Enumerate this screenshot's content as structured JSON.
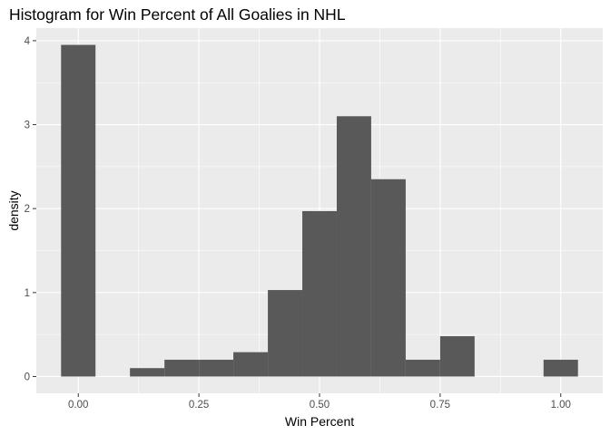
{
  "chart_data": {
    "type": "bar",
    "title": "Histogram for Win Percent of All Goalies in NHL",
    "xlabel": "Win Percent",
    "ylabel": "density",
    "bin_width": 0.0714,
    "bins": [
      {
        "x_start": -0.0357,
        "x_end": 0.0357,
        "density": 3.95
      },
      {
        "x_start": 0.0357,
        "x_end": 0.1071,
        "density": 0
      },
      {
        "x_start": 0.1071,
        "x_end": 0.1786,
        "density": 0.1
      },
      {
        "x_start": 0.1786,
        "x_end": 0.25,
        "density": 0.2
      },
      {
        "x_start": 0.25,
        "x_end": 0.3214,
        "density": 0.2
      },
      {
        "x_start": 0.3214,
        "x_end": 0.3929,
        "density": 0.29
      },
      {
        "x_start": 0.3929,
        "x_end": 0.4643,
        "density": 1.03
      },
      {
        "x_start": 0.4643,
        "x_end": 0.5357,
        "density": 1.97
      },
      {
        "x_start": 0.5357,
        "x_end": 0.6071,
        "density": 3.1
      },
      {
        "x_start": 0.6071,
        "x_end": 0.6786,
        "density": 2.35
      },
      {
        "x_start": 0.6786,
        "x_end": 0.75,
        "density": 0.2
      },
      {
        "x_start": 0.75,
        "x_end": 0.8214,
        "density": 0.48
      },
      {
        "x_start": 0.8214,
        "x_end": 0.8929,
        "density": 0
      },
      {
        "x_start": 0.8929,
        "x_end": 0.9643,
        "density": 0
      },
      {
        "x_start": 0.9643,
        "x_end": 1.0357,
        "density": 0.2
      }
    ],
    "xlim": [
      -0.087,
      1.087
    ],
    "ylim": [
      -0.2,
      4.15
    ],
    "x_ticks": [
      {
        "value": 0,
        "label": "0.00"
      },
      {
        "value": 0.25,
        "label": "0.25"
      },
      {
        "value": 0.5,
        "label": "0.50"
      },
      {
        "value": 0.75,
        "label": "0.75"
      },
      {
        "value": 1,
        "label": "1.00"
      }
    ],
    "y_ticks": [
      {
        "value": 0,
        "label": "0"
      },
      {
        "value": 1,
        "label": "1"
      },
      {
        "value": 2,
        "label": "2"
      },
      {
        "value": 3,
        "label": "3"
      },
      {
        "value": 4,
        "label": "4"
      }
    ],
    "grid": true,
    "colors": {
      "panel_background": "#ebebeb",
      "grid_major": "#ffffff",
      "bar_fill": "#595959",
      "tick_label": "#4d4d4d",
      "tick_mark": "#333333"
    }
  }
}
